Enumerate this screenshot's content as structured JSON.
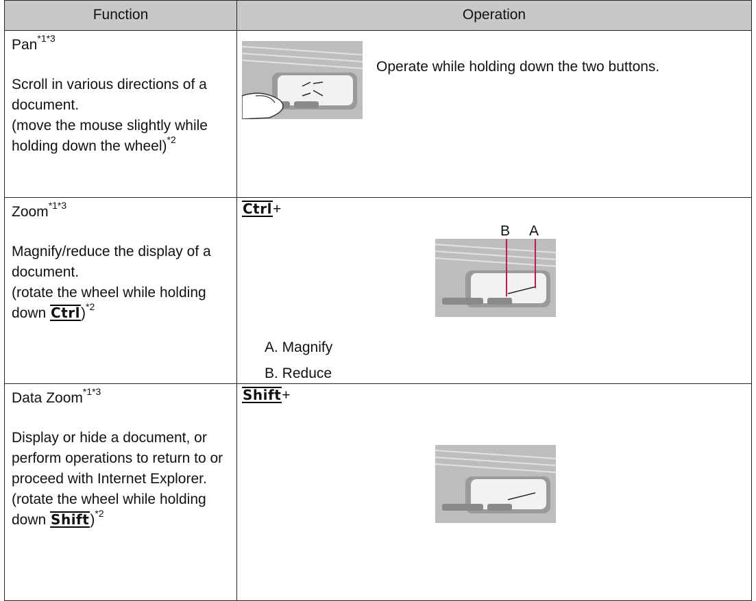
{
  "table": {
    "header": [
      "Function",
      "Operation"
    ],
    "rows": [
      {
        "function": {
          "name": "Pan",
          "note": "*1*3",
          "description": "Scroll in various directions of a document.",
          "action": {
            "text": "(move the mouse slightly while holding down the wheel)",
            "note": "*2"
          }
        },
        "operation": {
          "text": "Operate while holding down the two buttons."
        }
      },
      {
        "function": {
          "name": "Zoom",
          "note": "*1*3",
          "description": "Magnify/reduce the display of a document.",
          "action": {
            "before": "(rotate the wheel while holding down",
            "key": "Ctrl",
            "after": ")",
            "note": "*2"
          }
        },
        "operation": {
          "key": "Ctrl",
          "plus": "+",
          "labels": [
            "B",
            "A"
          ],
          "legend": [
            "A. Magnify",
            "B. Reduce"
          ]
        }
      },
      {
        "function": {
          "name": "Data Zoom",
          "note": "*1*3",
          "description": "Display or hide a document, or perform operations to return to or proceed with Internet Explorer.",
          "action": {
            "before": "(rotate the wheel while holding down",
            "key": "Shift",
            "after": ")",
            "note": "*2"
          }
        },
        "operation": {
          "key": "Shift",
          "plus": "+"
        }
      }
    ]
  }
}
